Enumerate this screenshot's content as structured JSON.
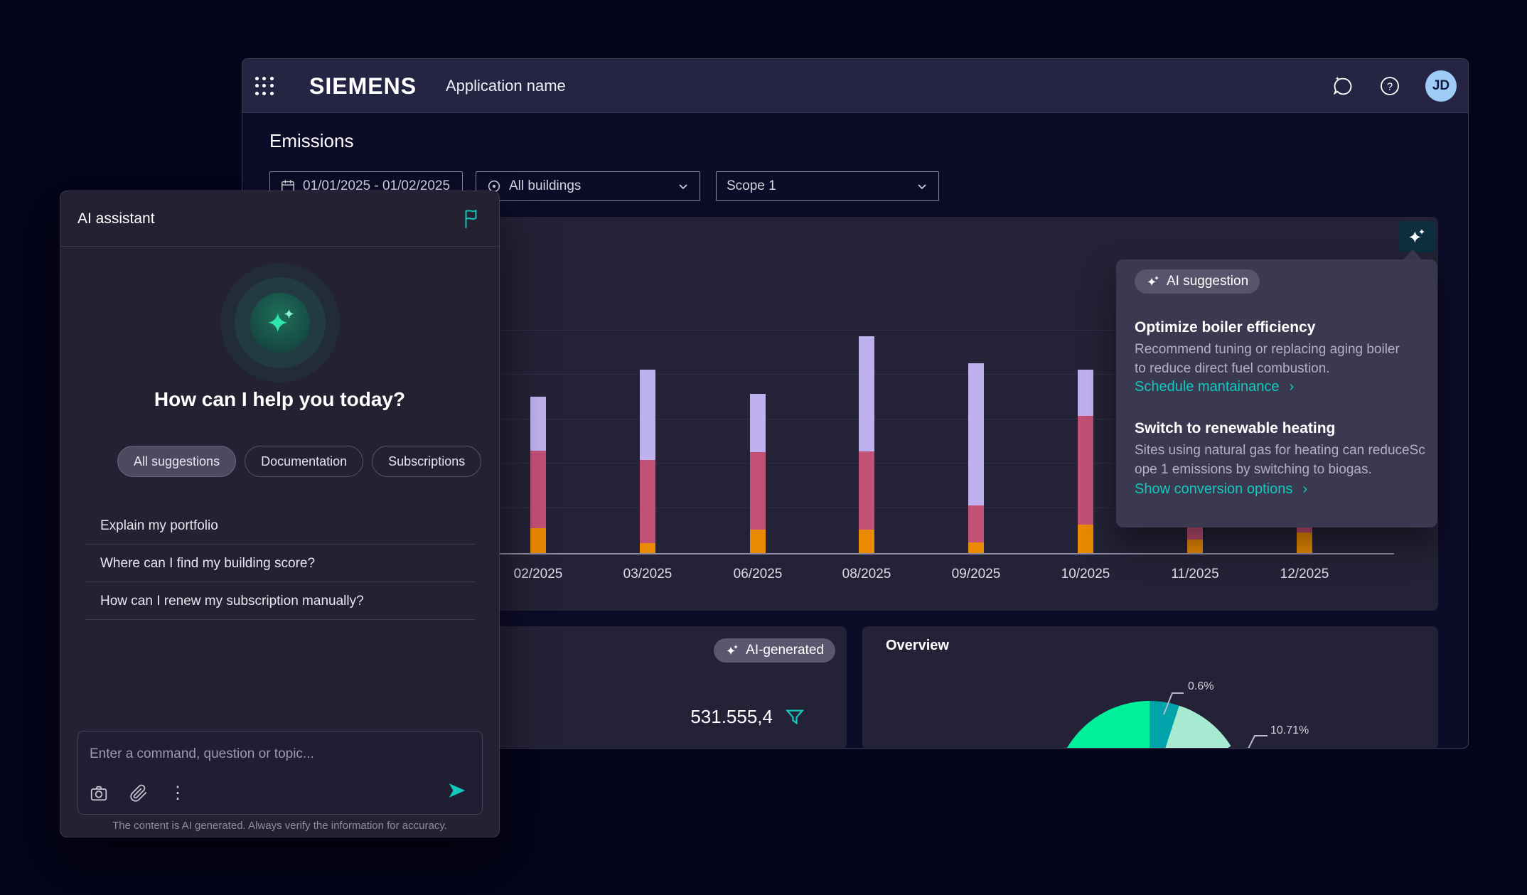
{
  "header": {
    "brand": "SIEMENS",
    "app_name": "Application name",
    "avatar_initials": "JD"
  },
  "page": {
    "title": "Emissions",
    "filters": {
      "date_range": "01/01/2025 - 01/02/2025",
      "buildings": "All buildings",
      "scope": "Scope 1"
    }
  },
  "ai_assistant": {
    "title": "AI assistant",
    "greeting": "How can I help you today?",
    "chips": [
      {
        "label": "All suggestions",
        "selected": true
      },
      {
        "label": "Documentation",
        "selected": false
      },
      {
        "label": "Subscriptions",
        "selected": false
      }
    ],
    "suggestions": [
      "Explain my portfolio",
      "Where can I find my building score?",
      "How can I renew my subscription manually?"
    ],
    "input_placeholder": "Enter a command, question or topic...",
    "disclaimer": "The content is AI generated. Always verify the information for accuracy."
  },
  "ai_suggestion_popover": {
    "badge": "AI suggestion",
    "items": [
      {
        "title": "Optimize boiler efficiency",
        "body_lines": [
          "Recommend tuning or replacing aging boiler",
          "to reduce direct fuel combustion."
        ],
        "link": "Schedule mantainance",
        "link_chevron": "›"
      },
      {
        "title": "Switch to renewable heating",
        "body_lines": [
          "Sites using natural gas for heating can reduceSc",
          "ope 1 emissions by switching to biogas."
        ],
        "link": "Show conversion options",
        "link_chevron": "›"
      }
    ]
  },
  "bottom_left_card": {
    "badge": "AI-generated",
    "value": "531.555,4"
  },
  "overview_card": {
    "title": "Overview"
  },
  "colors": {
    "accent_teal": "#14C8BC",
    "bar_orange": "#E98A00",
    "bar_pink": "#C25077",
    "bar_lavender": "#BFB1EE",
    "pie_green": "#00EF9B",
    "pie_teal": "#00A3A9",
    "pie_mint": "#A5EAD1",
    "avatar_bg": "#9FCBF7"
  },
  "chart_data": [
    {
      "id": "emissions-stacked-bar",
      "type": "bar",
      "stacked": true,
      "title": "",
      "xlabel": "",
      "ylabel": "",
      "grid": true,
      "legend": false,
      "categories": [
        "02/2025",
        "03/2025",
        "06/2025",
        "08/2025",
        "09/2025",
        "10/2025",
        "11/2025",
        "12/2025"
      ],
      "series": [
        {
          "name": "segment-orange",
          "color": "#E98A00",
          "values": [
            35,
            14,
            33,
            33,
            15,
            40,
            19,
            29
          ]
        },
        {
          "name": "segment-pink",
          "color": "#C25077",
          "values": [
            109,
            117,
            109,
            110,
            52,
            153,
            60,
            80
          ]
        },
        {
          "name": "segment-lavender",
          "color": "#BFB1EE",
          "values": [
            76,
            127,
            82,
            162,
            200,
            65,
            120,
            100
          ]
        }
      ],
      "note": "No y-axis tick labels are visible; values are relative heights estimated from pixels. The 11/2025 and 12/2025 bars are mostly occluded by the AI suggestion popover, so their upper segments are estimates."
    },
    {
      "id": "overview-pie",
      "type": "pie",
      "title": "Overview",
      "legend": false,
      "slices": [
        {
          "name": "slice-green",
          "color": "#00EF9B",
          "label": "",
          "start_deg": 300,
          "end_deg": 360
        },
        {
          "name": "slice-teal",
          "color": "#00A3A9",
          "label": "0.6%",
          "start_deg": 0,
          "end_deg": 18
        },
        {
          "name": "slice-mint",
          "color": "#A5EAD1",
          "label": "10.71%",
          "start_deg": 18,
          "end_deg": 58
        }
      ],
      "note": "Pie chart is clipped by the bottom edge of the dashboard; only the top arc is visible. Angles estimated."
    }
  ]
}
